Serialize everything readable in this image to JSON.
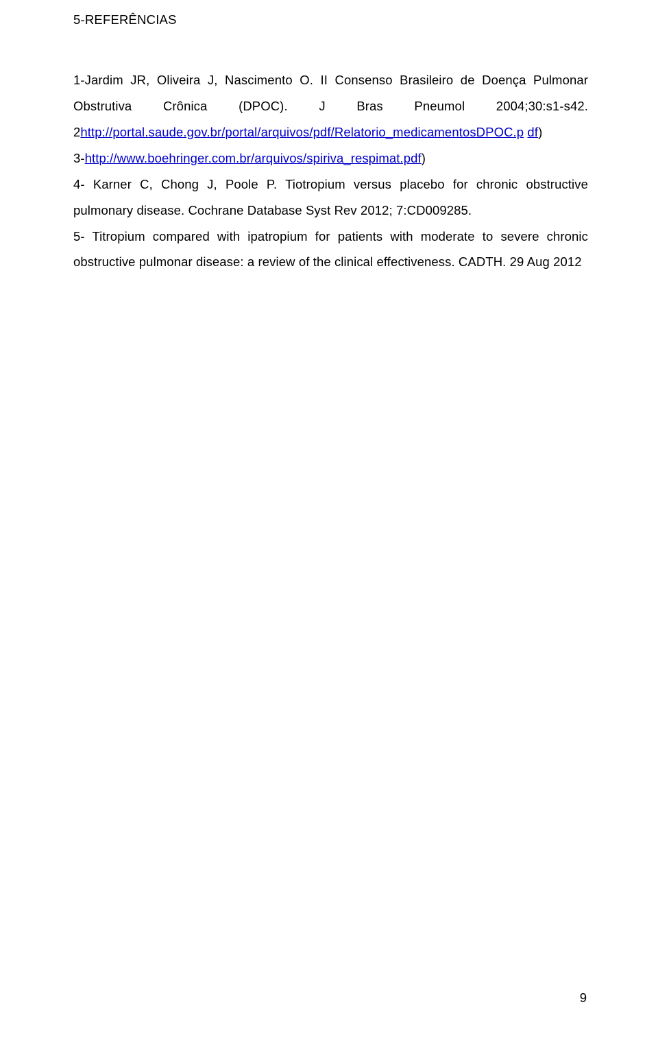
{
  "heading_num": "5-R",
  "heading_rest": "EFERÊNCIAS",
  "body_html": "1-Jardim JR, Oliveira J, Nascimento O. II Consenso Brasileiro de Doença Pulmonar Obstrutiva Crônica (DPOC). J Bras Pneumol 2004;30:s1-s42. 2<a class=\"link\" data-name=\"link-portal-saude\" data-interactable=\"true\">http://portal.saude.gov.br/portal/arquivos/pdf/Relatorio_medicamentosDPOC.p</a> <a class=\"link\" data-name=\"link-portal-saude-cont\" data-interactable=\"true\">df</a>)<br>3-<a class=\"link\" data-name=\"link-boehringer\" data-interactable=\"true\">http://www.boehringer.com.br/arquivos/spiriva_respimat.pdf</a>)<br>4- Karner C, Chong J, Poole P. Tiotropium versus placebo for chronic obstructive pulmonary disease. Cochrane Database Syst Rev 2012; 7:CD009285.<br>5- Titropium compared with ipatropium for patients with moderate to severe chronic obstructive pulmonar disease: a review of the clinical effectiveness. CADTH. 29 Aug 2012",
  "page_number": "9",
  "text_color": "#000000",
  "link_color": "#0000cc",
  "background_color": "#ffffff"
}
